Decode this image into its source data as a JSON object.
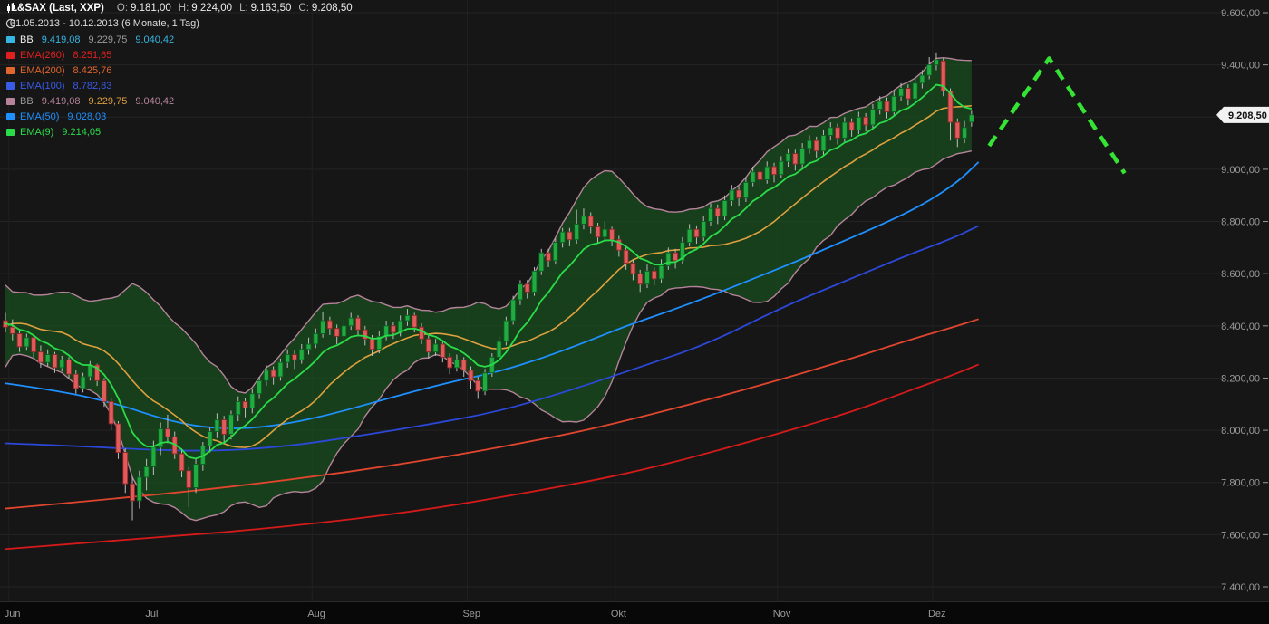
{
  "header": {
    "title": "L&SAX (Last, XXP)",
    "ohlc": [
      {
        "label": "O:",
        "value": "9.181,00"
      },
      {
        "label": "H:",
        "value": "9.224,00"
      },
      {
        "label": "L:",
        "value": "9.163,50"
      },
      {
        "label": "C:",
        "value": "9.208,50"
      }
    ],
    "date_range": "31.05.2013 - 10.12.2013 (6 Monate, 1 Tag)"
  },
  "legend": [
    {
      "name": "BB",
      "chip": "#36b6e2",
      "label_color": "#f0f0f0",
      "values": [
        "9.419,08",
        "9.229,75",
        "9.040,42"
      ],
      "value_colors": [
        "#36b6e2",
        "#9a9a9a",
        "#36b6e2"
      ]
    },
    {
      "name": "EMA(260)",
      "chip": "#e02020",
      "label_color": "#e02020",
      "values": [
        "8.251,65"
      ],
      "value_colors": [
        "#e02020"
      ]
    },
    {
      "name": "EMA(200)",
      "chip": "#e0662e",
      "label_color": "#e0662e",
      "values": [
        "8.425,76"
      ],
      "value_colors": [
        "#e0662e"
      ]
    },
    {
      "name": "EMA(100)",
      "chip": "#3a5be8",
      "label_color": "#3a5be8",
      "values": [
        "8.782,83"
      ],
      "value_colors": [
        "#3a5be8"
      ]
    },
    {
      "name": "BB",
      "chip": "#b5849b",
      "label_color": "#9a9a9a",
      "values": [
        "9.419,08",
        "9.229,75",
        "9.040,42"
      ],
      "value_colors": [
        "#b5849b",
        "#dfa040",
        "#b5849b"
      ]
    },
    {
      "name": "EMA(50)",
      "chip": "#1e90ff",
      "label_color": "#1e90ff",
      "values": [
        "9.028,03"
      ],
      "value_colors": [
        "#1e90ff"
      ]
    },
    {
      "name": "EMA(9)",
      "chip": "#2bdc4a",
      "label_color": "#2bdc4a",
      "values": [
        "9.214,05"
      ],
      "value_colors": [
        "#2bdc4a"
      ]
    }
  ],
  "price_tag": {
    "label": "9.208,50",
    "value": 9208.5,
    "bg": "#f2f2f2",
    "text_color": "#111111"
  },
  "chart_data": {
    "type": "candlestick",
    "title": "L&SAX (Last, XXP)",
    "interval": "1 Tag",
    "date_range": "31.05.2013 - 10.12.2013",
    "y_axis": {
      "min": 7400,
      "max": 9600,
      "step": 200,
      "tick_labels": [
        "9.600,00",
        "9.400,00",
        "9.200,00",
        "9.000,00",
        "8.800,00",
        "8.600,00",
        "8.400,00",
        "8.200,00",
        "8.000,00",
        "7.800,00",
        "7.600,00",
        "7.400,00"
      ]
    },
    "x_axis": {
      "month_labels": [
        "Jun",
        "Jul",
        "Aug",
        "Sep",
        "Okt",
        "Nov",
        "Dez"
      ],
      "month_bar_index": [
        1,
        21,
        44,
        66,
        87,
        110,
        132
      ]
    },
    "style": {
      "up_color": "#22ab40",
      "up_border": "#0b5c22",
      "down_color": "#e05c5c",
      "down_border": "#8c2626",
      "wick_color": "#bdbdbd",
      "grid_color": "#242424",
      "vgrid_color": "#202020",
      "axis_text_color": "#9b9b9b",
      "bottom_strip_color": "#080808"
    },
    "pre_close": [
      8250,
      8180,
      8300,
      8420,
      8500,
      8460,
      8380,
      8300,
      8350,
      8450,
      8520,
      8480,
      8400,
      8320,
      8380,
      8440,
      8470,
      8430,
      8390,
      8420
    ],
    "candles": [
      [
        8420,
        8450,
        8375,
        8395
      ],
      [
        8395,
        8425,
        8345,
        8370
      ],
      [
        8370,
        8385,
        8300,
        8320
      ],
      [
        8320,
        8370,
        8305,
        8355
      ],
      [
        8355,
        8365,
        8280,
        8300
      ],
      [
        8300,
        8325,
        8240,
        8260
      ],
      [
        8260,
        8310,
        8245,
        8290
      ],
      [
        8290,
        8300,
        8220,
        8240
      ],
      [
        8240,
        8285,
        8225,
        8270
      ],
      [
        8270,
        8280,
        8195,
        8215
      ],
      [
        8215,
        8230,
        8140,
        8160
      ],
      [
        8160,
        8220,
        8145,
        8205
      ],
      [
        8205,
        8265,
        8190,
        8250
      ],
      [
        8250,
        8255,
        8170,
        8190
      ],
      [
        8190,
        8200,
        8090,
        8110
      ],
      [
        8110,
        8125,
        8000,
        8025
      ],
      [
        8025,
        8035,
        7890,
        7915
      ],
      [
        7915,
        7930,
        7760,
        7795
      ],
      [
        7795,
        7820,
        7655,
        7730
      ],
      [
        7730,
        7845,
        7700,
        7820
      ],
      [
        7820,
        7890,
        7770,
        7860
      ],
      [
        7860,
        7960,
        7830,
        7935
      ],
      [
        7935,
        8030,
        7905,
        8005
      ],
      [
        8005,
        8060,
        7950,
        7975
      ],
      [
        7975,
        7995,
        7890,
        7910
      ],
      [
        7910,
        7930,
        7820,
        7845
      ],
      [
        7845,
        7860,
        7705,
        7780
      ],
      [
        7780,
        7895,
        7760,
        7870
      ],
      [
        7870,
        7955,
        7845,
        7940
      ],
      [
        7940,
        8010,
        7915,
        7995
      ],
      [
        7995,
        8065,
        7970,
        8040
      ],
      [
        8040,
        8055,
        7950,
        7985
      ],
      [
        7985,
        8075,
        7965,
        8060
      ],
      [
        8060,
        8130,
        8035,
        8110
      ],
      [
        8110,
        8125,
        8050,
        8085
      ],
      [
        8085,
        8160,
        8065,
        8140
      ],
      [
        8140,
        8205,
        8120,
        8190
      ],
      [
        8190,
        8250,
        8170,
        8230
      ],
      [
        8230,
        8245,
        8175,
        8205
      ],
      [
        8205,
        8275,
        8190,
        8260
      ],
      [
        8260,
        8310,
        8240,
        8290
      ],
      [
        8290,
        8305,
        8235,
        8270
      ],
      [
        8270,
        8330,
        8255,
        8310
      ],
      [
        8310,
        8355,
        8290,
        8330
      ],
      [
        8330,
        8390,
        8315,
        8370
      ],
      [
        8370,
        8455,
        8355,
        8420
      ],
      [
        8420,
        8435,
        8365,
        8390
      ],
      [
        8390,
        8405,
        8330,
        8360
      ],
      [
        8360,
        8425,
        8345,
        8400
      ],
      [
        8400,
        8450,
        8385,
        8430
      ],
      [
        8430,
        8440,
        8360,
        8385
      ],
      [
        8385,
        8400,
        8325,
        8350
      ],
      [
        8350,
        8365,
        8285,
        8310
      ],
      [
        8310,
        8380,
        8295,
        8360
      ],
      [
        8360,
        8420,
        8345,
        8400
      ],
      [
        8400,
        8415,
        8350,
        8375
      ],
      [
        8375,
        8440,
        8360,
        8420
      ],
      [
        8420,
        8465,
        8400,
        8440
      ],
      [
        8440,
        8450,
        8375,
        8395
      ],
      [
        8395,
        8410,
        8330,
        8350
      ],
      [
        8350,
        8365,
        8275,
        8300
      ],
      [
        8300,
        8350,
        8285,
        8330
      ],
      [
        8330,
        8340,
        8260,
        8280
      ],
      [
        8280,
        8295,
        8215,
        8240
      ],
      [
        8240,
        8290,
        8225,
        8270
      ],
      [
        8270,
        8280,
        8205,
        8230
      ],
      [
        8230,
        8245,
        8160,
        8190
      ],
      [
        8190,
        8205,
        8120,
        8150
      ],
      [
        8150,
        8235,
        8135,
        8220
      ],
      [
        8220,
        8295,
        8205,
        8280
      ],
      [
        8280,
        8360,
        8265,
        8340
      ],
      [
        8340,
        8435,
        8325,
        8420
      ],
      [
        8420,
        8515,
        8405,
        8500
      ],
      [
        8500,
        8575,
        8480,
        8560
      ],
      [
        8560,
        8575,
        8505,
        8530
      ],
      [
        8530,
        8625,
        8515,
        8610
      ],
      [
        8610,
        8695,
        8595,
        8680
      ],
      [
        8680,
        8695,
        8625,
        8650
      ],
      [
        8650,
        8735,
        8635,
        8720
      ],
      [
        8720,
        8775,
        8700,
        8760
      ],
      [
        8760,
        8775,
        8705,
        8730
      ],
      [
        8730,
        8845,
        8715,
        8790
      ],
      [
        8790,
        8850,
        8770,
        8820
      ],
      [
        8820,
        8835,
        8755,
        8780
      ],
      [
        8780,
        8795,
        8715,
        8740
      ],
      [
        8740,
        8800,
        8725,
        8770
      ],
      [
        8770,
        8780,
        8705,
        8730
      ],
      [
        8730,
        8745,
        8665,
        8690
      ],
      [
        8690,
        8705,
        8615,
        8640
      ],
      [
        8640,
        8655,
        8575,
        8600
      ],
      [
        8600,
        8615,
        8530,
        8560
      ],
      [
        8560,
        8635,
        8545,
        8610
      ],
      [
        8610,
        8625,
        8555,
        8580
      ],
      [
        8580,
        8655,
        8565,
        8630
      ],
      [
        8630,
        8700,
        8615,
        8680
      ],
      [
        8680,
        8695,
        8620,
        8650
      ],
      [
        8650,
        8740,
        8635,
        8720
      ],
      [
        8720,
        8790,
        8705,
        8770
      ],
      [
        8770,
        8785,
        8715,
        8740
      ],
      [
        8740,
        8820,
        8725,
        8800
      ],
      [
        8800,
        8870,
        8785,
        8850
      ],
      [
        8850,
        8865,
        8790,
        8820
      ],
      [
        8820,
        8900,
        8805,
        8880
      ],
      [
        8880,
        8940,
        8860,
        8920
      ],
      [
        8920,
        8935,
        8860,
        8890
      ],
      [
        8890,
        8970,
        8875,
        8950
      ],
      [
        8950,
        9010,
        8935,
        8990
      ],
      [
        8990,
        9005,
        8930,
        8960
      ],
      [
        8960,
        9030,
        8945,
        9010
      ],
      [
        9010,
        9025,
        8950,
        8980
      ],
      [
        8980,
        9050,
        8965,
        9030
      ],
      [
        9030,
        9080,
        9010,
        9060
      ],
      [
        9060,
        9075,
        8995,
        9020
      ],
      [
        9020,
        9100,
        9005,
        9080
      ],
      [
        9080,
        9130,
        9060,
        9110
      ],
      [
        9110,
        9125,
        9045,
        9070
      ],
      [
        9070,
        9150,
        9055,
        9130
      ],
      [
        9130,
        9180,
        9110,
        9160
      ],
      [
        9160,
        9175,
        9095,
        9120
      ],
      [
        9120,
        9200,
        9105,
        9180
      ],
      [
        9180,
        9195,
        9125,
        9150
      ],
      [
        9150,
        9220,
        9135,
        9200
      ],
      [
        9200,
        9215,
        9145,
        9170
      ],
      [
        9170,
        9250,
        9155,
        9230
      ],
      [
        9230,
        9280,
        9210,
        9260
      ],
      [
        9260,
        9275,
        9195,
        9220
      ],
      [
        9220,
        9300,
        9205,
        9280
      ],
      [
        9280,
        9330,
        9260,
        9310
      ],
      [
        9310,
        9325,
        9245,
        9270
      ],
      [
        9270,
        9350,
        9255,
        9330
      ],
      [
        9330,
        9380,
        9310,
        9360
      ],
      [
        9360,
        9430,
        9345,
        9400
      ],
      [
        9400,
        9448,
        9380,
        9420
      ],
      [
        9415,
        9425,
        9280,
        9300
      ],
      [
        9300,
        9310,
        9110,
        9180
      ],
      [
        9180,
        9195,
        9085,
        9120
      ],
      [
        9120,
        9185,
        9100,
        9160
      ],
      [
        9181,
        9224,
        9163.5,
        9208.5
      ]
    ],
    "indicators": {
      "ema9": {
        "period": 9,
        "color": "#2bdc4a",
        "last": 9214.05
      },
      "bollinger": {
        "period": 20,
        "mult": 2,
        "band_color": "#b5849b",
        "middle_color": "#dfa040",
        "fill": "rgba(26,77,30,0.75)",
        "last_upper": 9419.08,
        "last_middle": 9229.75,
        "last_lower": 9040.42
      },
      "ema50": {
        "color": "#1e90ff",
        "last": 9028.03,
        "points": [
          [
            0,
            8180
          ],
          [
            8,
            8150
          ],
          [
            16,
            8100
          ],
          [
            22,
            8045
          ],
          [
            28,
            8010
          ],
          [
            34,
            8005
          ],
          [
            40,
            8025
          ],
          [
            46,
            8060
          ],
          [
            52,
            8105
          ],
          [
            58,
            8150
          ],
          [
            64,
            8190
          ],
          [
            70,
            8225
          ],
          [
            76,
            8275
          ],
          [
            82,
            8335
          ],
          [
            88,
            8400
          ],
          [
            94,
            8455
          ],
          [
            100,
            8515
          ],
          [
            106,
            8580
          ],
          [
            112,
            8645
          ],
          [
            118,
            8715
          ],
          [
            124,
            8785
          ],
          [
            130,
            8862
          ],
          [
            135,
            8950
          ],
          [
            138,
            9028
          ]
        ]
      },
      "ema100": {
        "color": "#2b48d9",
        "last": 8782.83,
        "points": [
          [
            0,
            7950
          ],
          [
            10,
            7940
          ],
          [
            20,
            7925
          ],
          [
            30,
            7920
          ],
          [
            40,
            7938
          ],
          [
            50,
            7978
          ],
          [
            60,
            8022
          ],
          [
            70,
            8072
          ],
          [
            80,
            8152
          ],
          [
            90,
            8242
          ],
          [
            100,
            8335
          ],
          [
            110,
            8470
          ],
          [
            120,
            8582
          ],
          [
            128,
            8672
          ],
          [
            134,
            8732
          ],
          [
            138,
            8783
          ]
        ]
      },
      "ema200": {
        "color": "#e0462e",
        "last": 8425.76,
        "points": [
          [
            0,
            7700
          ],
          [
            20,
            7748
          ],
          [
            40,
            7808
          ],
          [
            60,
            7885
          ],
          [
            80,
            7985
          ],
          [
            90,
            8050
          ],
          [
            100,
            8120
          ],
          [
            110,
            8195
          ],
          [
            120,
            8275
          ],
          [
            128,
            8345
          ],
          [
            134,
            8392
          ],
          [
            138,
            8426
          ]
        ]
      },
      "ema260": {
        "color": "#d51a1a",
        "last": 8251.65,
        "points": [
          [
            0,
            7545
          ],
          [
            20,
            7585
          ],
          [
            40,
            7630
          ],
          [
            60,
            7695
          ],
          [
            80,
            7790
          ],
          [
            90,
            7845
          ],
          [
            100,
            7915
          ],
          [
            110,
            7990
          ],
          [
            120,
            8070
          ],
          [
            128,
            8150
          ],
          [
            134,
            8208
          ],
          [
            138,
            8252
          ]
        ]
      }
    },
    "annotation": {
      "color": "#35e335",
      "dash": "13 9",
      "width": 4.5,
      "points": [
        [
          139.5,
          9090
        ],
        [
          148,
          9425
        ],
        [
          158.7,
          8985
        ]
      ]
    }
  }
}
